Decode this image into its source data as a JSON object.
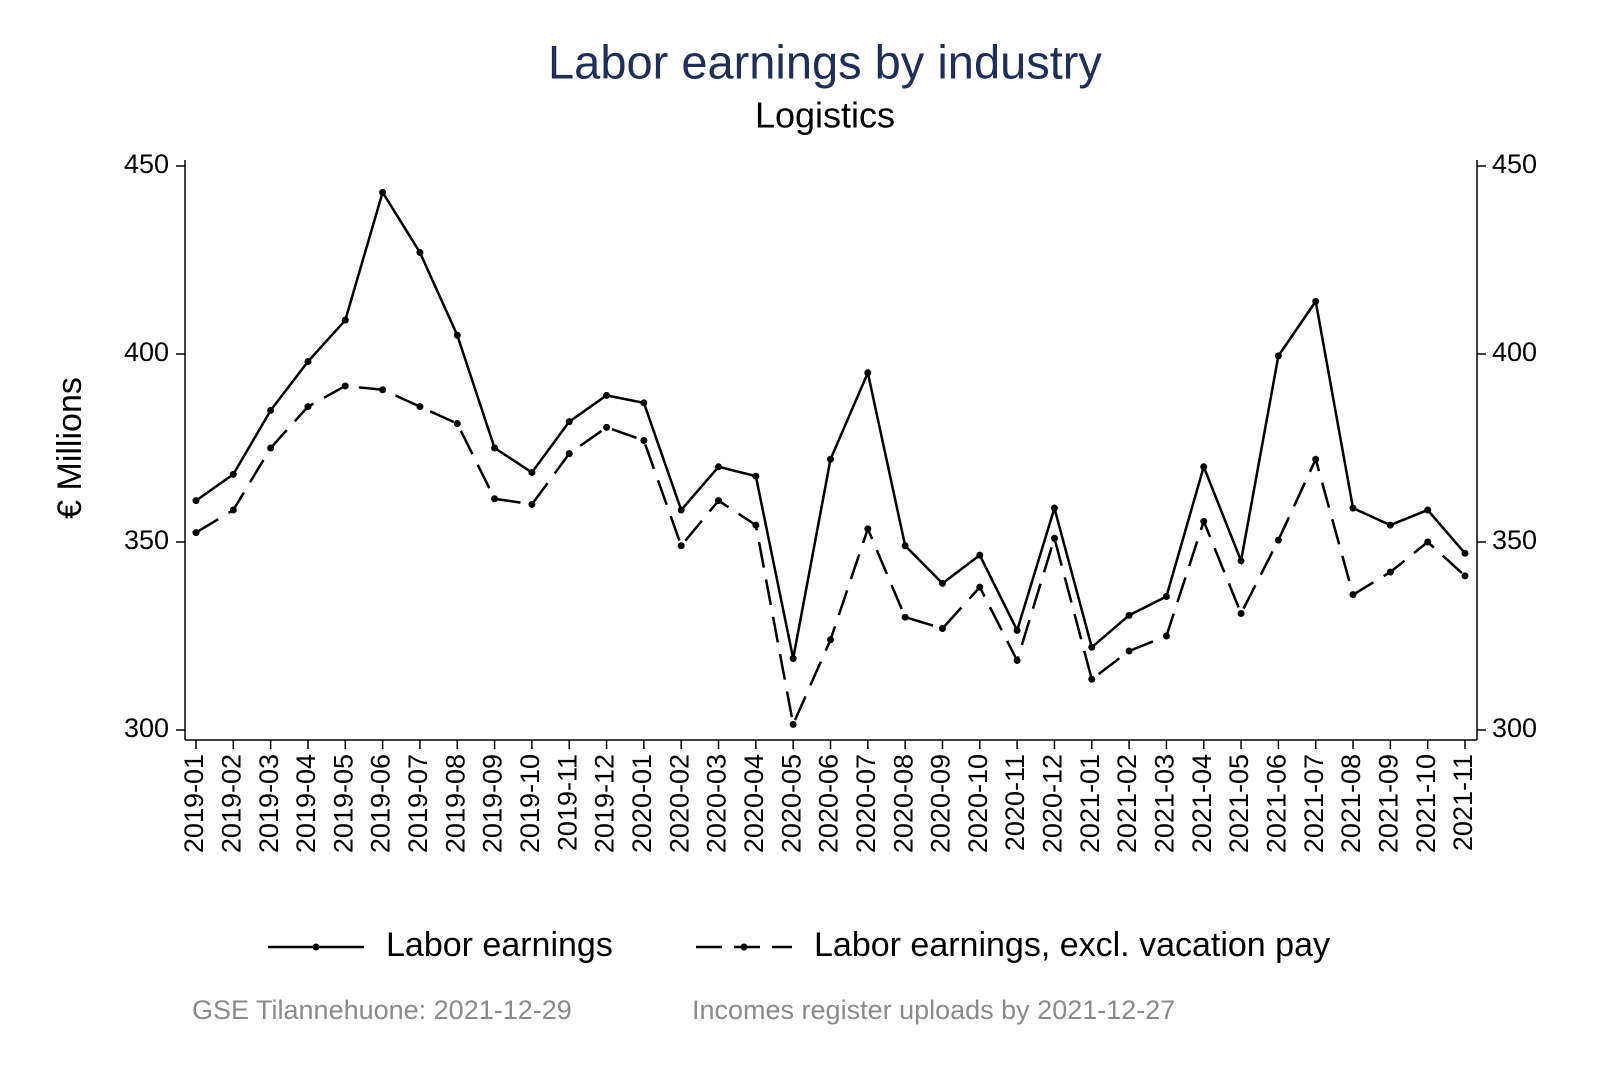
{
  "chart_data": {
    "type": "line",
    "title": "Labor earnings by industry",
    "subtitle": "Logistics",
    "y_label": "€ Millions",
    "footer_left": "GSE Tilannehuone: 2021-12-29",
    "footer_right": "Incomes register uploads by 2021-12-27",
    "categories": [
      "2019-01",
      "2019-02",
      "2019-03",
      "2019-04",
      "2019-05",
      "2019-06",
      "2019-07",
      "2019-08",
      "2019-09",
      "2019-10",
      "2019-11",
      "2019-12",
      "2020-01",
      "2020-02",
      "2020-03",
      "2020-04",
      "2020-05",
      "2020-06",
      "2020-07",
      "2020-08",
      "2020-09",
      "2020-10",
      "2020-11",
      "2020-12",
      "2021-01",
      "2021-02",
      "2021-03",
      "2021-04",
      "2021-05",
      "2021-06",
      "2021-07",
      "2021-08",
      "2021-09",
      "2021-10",
      "2021-11"
    ],
    "series": [
      {
        "name": "Labor earnings",
        "color": "#000000",
        "dash": "solid",
        "values": [
          361,
          368,
          385,
          398,
          409,
          443,
          427,
          405,
          375,
          368.5,
          382,
          389,
          387,
          358.5,
          370,
          367.5,
          319,
          372,
          395,
          349,
          339,
          346.5,
          326.5,
          359,
          322,
          330.5,
          335.5,
          370,
          345,
          399.5,
          414,
          359,
          354.5,
          358.5,
          347
        ]
      },
      {
        "name": "Labor earnings, excl. vacation pay",
        "color": "#000000",
        "dash": "dashed",
        "values": [
          352.5,
          358.5,
          375,
          386,
          391.5,
          390.5,
          386,
          381.5,
          361.5,
          360,
          373.5,
          380.5,
          377,
          349,
          361,
          354.5,
          301.5,
          324,
          353.5,
          330,
          327,
          338,
          318.5,
          351,
          313.5,
          321,
          325,
          355.5,
          331,
          350.5,
          372,
          336,
          342,
          350,
          341
        ]
      }
    ],
    "ylim": [
      300,
      450
    ],
    "yticks": [
      300,
      350,
      400,
      450
    ],
    "right_axis": true,
    "grid": false
  }
}
